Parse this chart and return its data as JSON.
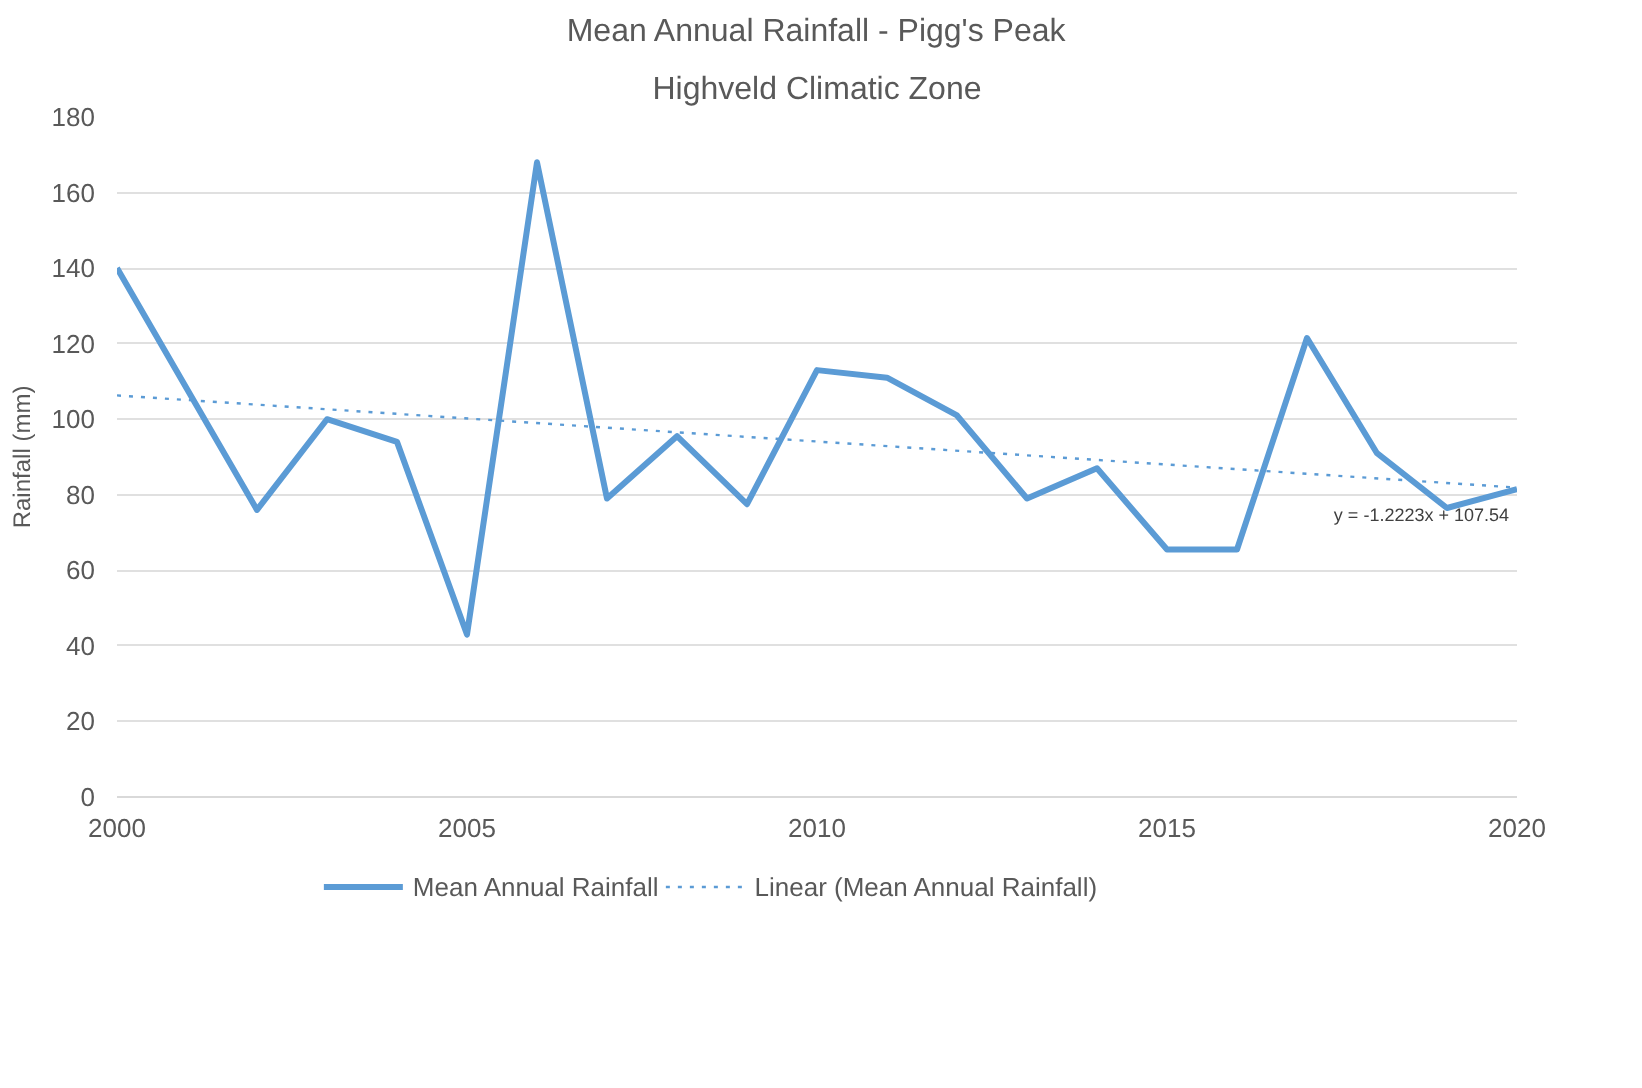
{
  "chart_data": {
    "type": "line",
    "title": "Mean Annual Rainfall - Pigg's Peak",
    "subtitle": "Highveld Climatic Zone",
    "ylabel": "Rainfall (mm)",
    "x": [
      2000,
      2001,
      2002,
      2003,
      2004,
      2005,
      2006,
      2007,
      2008,
      2009,
      2010,
      2011,
      2012,
      2013,
      2014,
      2015,
      2016,
      2017,
      2018,
      2019,
      2020
    ],
    "series": [
      {
        "name": "Mean Annual Rainfall",
        "color": "#5b9bd5",
        "line_style": "solid",
        "values": [
          140,
          108,
          76,
          100,
          94,
          43,
          168,
          79,
          95.5,
          77.5,
          113,
          111,
          101,
          79,
          87,
          65.5,
          65.5,
          121.5,
          91,
          76.5,
          81.5
        ]
      },
      {
        "name": "Linear (Mean Annual Rainfall)",
        "type": "line",
        "color": "#5b9bd5",
        "line_style": "dotted",
        "x": [
          2000,
          2020
        ],
        "values": [
          106.3,
          81.9
        ]
      }
    ],
    "annotations": [
      "y = -1.2223x + 107.54"
    ],
    "xlim": [
      2000,
      2020
    ],
    "xticks": [
      2000,
      2005,
      2010,
      2015,
      2020
    ],
    "ylim": [
      0,
      180
    ],
    "yticks": [
      0,
      20,
      40,
      60,
      80,
      100,
      120,
      140,
      160,
      180
    ],
    "grid": "y",
    "legend": "bottom",
    "marker": "none"
  }
}
